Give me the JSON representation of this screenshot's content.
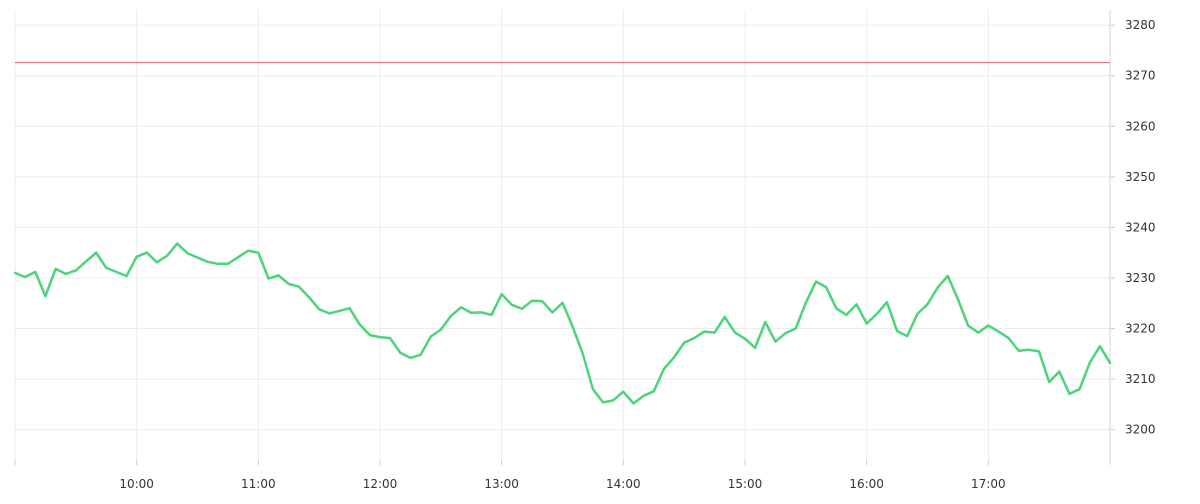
{
  "chart_data": {
    "type": "line",
    "title": "",
    "xlabel": "",
    "ylabel": "",
    "x_ticks": [
      "10:00",
      "11:00",
      "12:00",
      "13:00",
      "14:00",
      "15:00",
      "16:00",
      "17:00"
    ],
    "y_ticks": [
      3200,
      3210,
      3220,
      3230,
      3240,
      3250,
      3260,
      3270,
      3280
    ],
    "ylim": [
      3194,
      3283
    ],
    "xlim": [
      "09:00",
      "18:00"
    ],
    "grid": true,
    "reference_line": {
      "value": 3272.6,
      "color": "#e06666"
    },
    "series": [
      {
        "color": "#4cd47a",
        "points": [
          [
            "09:00",
            3231
          ],
          [
            "09:05",
            3230.2
          ],
          [
            "09:10",
            3231.2
          ],
          [
            "09:15",
            3226.4
          ],
          [
            "09:20",
            3231.8
          ],
          [
            "09:25",
            3230.8
          ],
          [
            "09:30",
            3231.5
          ],
          [
            "09:40",
            3235
          ],
          [
            "09:45",
            3232
          ],
          [
            "09:55",
            3230.4
          ],
          [
            "10:00",
            3234.2
          ],
          [
            "10:05",
            3235
          ],
          [
            "10:10",
            3233.1
          ],
          [
            "10:15",
            3234.4
          ],
          [
            "10:20",
            3236.8
          ],
          [
            "10:25",
            3234.9
          ],
          [
            "10:35",
            3233.2
          ],
          [
            "10:40",
            3232.8
          ],
          [
            "10:45",
            3232.8
          ],
          [
            "10:55",
            3235.4
          ],
          [
            "11:00",
            3235
          ],
          [
            "11:05",
            3229.9
          ],
          [
            "11:10",
            3230.5
          ],
          [
            "11:15",
            3228.8
          ],
          [
            "11:20",
            3228.3
          ],
          [
            "11:25",
            3226.2
          ],
          [
            "11:30",
            3223.8
          ],
          [
            "11:35",
            3223
          ],
          [
            "11:45",
            3224
          ],
          [
            "11:50",
            3220.8
          ],
          [
            "11:55",
            3218.7
          ],
          [
            "12:00",
            3218.3
          ],
          [
            "12:05",
            3218.1
          ],
          [
            "12:10",
            3215.2
          ],
          [
            "12:15",
            3214.2
          ],
          [
            "12:20",
            3214.8
          ],
          [
            "12:25",
            3218.4
          ],
          [
            "12:30",
            3219.8
          ],
          [
            "12:35",
            3222.5
          ],
          [
            "12:40",
            3224.2
          ],
          [
            "12:45",
            3223.1
          ],
          [
            "12:50",
            3223.2
          ],
          [
            "12:55",
            3222.7
          ],
          [
            "13:00",
            3226.8
          ],
          [
            "13:05",
            3224.7
          ],
          [
            "13:10",
            3223.9
          ],
          [
            "13:15",
            3225.5
          ],
          [
            "13:20",
            3225.4
          ],
          [
            "13:25",
            3223.2
          ],
          [
            "13:30",
            3225.1
          ],
          [
            "13:35",
            3220.4
          ],
          [
            "13:40",
            3215
          ],
          [
            "13:45",
            3208
          ],
          [
            "13:50",
            3205.4
          ],
          [
            "13:55",
            3205.8
          ],
          [
            "14:00",
            3207.5
          ],
          [
            "14:05",
            3205.2
          ],
          [
            "14:10",
            3206.7
          ],
          [
            "14:15",
            3207.6
          ],
          [
            "14:20",
            3212
          ],
          [
            "14:25",
            3214.3
          ],
          [
            "14:30",
            3217.2
          ],
          [
            "14:35",
            3218.1
          ],
          [
            "14:40",
            3219.4
          ],
          [
            "14:45",
            3219.2
          ],
          [
            "14:50",
            3222.3
          ],
          [
            "14:55",
            3219.2
          ],
          [
            "15:00",
            3218
          ],
          [
            "15:05",
            3216.2
          ],
          [
            "15:10",
            3221.3
          ],
          [
            "15:15",
            3217.4
          ],
          [
            "15:20",
            3219.1
          ],
          [
            "15:25",
            3220
          ],
          [
            "15:30",
            3225.1
          ],
          [
            "15:35",
            3229.3
          ],
          [
            "15:40",
            3228.2
          ],
          [
            "15:45",
            3224
          ],
          [
            "15:50",
            3222.7
          ],
          [
            "15:55",
            3224.8
          ],
          [
            "16:00",
            3221
          ],
          [
            "16:05",
            3222.9
          ],
          [
            "16:10",
            3225.2
          ],
          [
            "16:15",
            3219.5
          ],
          [
            "16:20",
            3218.5
          ],
          [
            "16:25",
            3222.9
          ],
          [
            "16:30",
            3224.8
          ],
          [
            "16:35",
            3228.1
          ],
          [
            "16:40",
            3230.4
          ],
          [
            "16:45",
            3225.8
          ],
          [
            "16:50",
            3220.6
          ],
          [
            "16:55",
            3219.2
          ],
          [
            "17:00",
            3220.6
          ],
          [
            "17:05",
            3219.4
          ],
          [
            "17:10",
            3218.1
          ],
          [
            "17:15",
            3215.6
          ],
          [
            "17:20",
            3215.8
          ],
          [
            "17:25",
            3215.5
          ],
          [
            "17:30",
            3209.4
          ],
          [
            "17:35",
            3211.5
          ],
          [
            "17:40",
            3207.1
          ],
          [
            "17:45",
            3208
          ],
          [
            "17:50",
            3213.2
          ],
          [
            "17:55",
            3216.5
          ],
          [
            "18:00",
            3213.2
          ]
        ]
      }
    ]
  }
}
